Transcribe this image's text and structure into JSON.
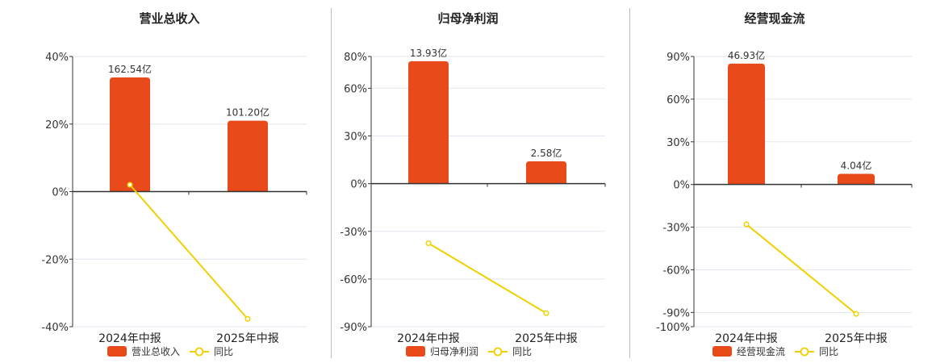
{
  "colors": {
    "bar": "#E84A1A",
    "line": "#F2D000",
    "grid": "#e3e6f0",
    "axis": "#333333",
    "text": "#333333"
  },
  "chart_data": [
    {
      "type": "bar",
      "title": "营业总收入",
      "categories": [
        "2024年中报",
        "2025年中报"
      ],
      "bar_labels": [
        "162.54亿",
        "101.20亿"
      ],
      "series": [
        {
          "name": "营业总收入",
          "type": "bar",
          "values": [
            33.8,
            21.0
          ]
        },
        {
          "name": "同比",
          "type": "line",
          "values": [
            2.0,
            -37.7
          ]
        }
      ],
      "ylim": [
        -40,
        40
      ],
      "yticks": [
        40,
        20,
        0,
        -20,
        -40
      ],
      "ytick_labels": [
        "40%",
        "20%",
        "0%",
        "-20%",
        "-40%"
      ],
      "grid": true,
      "legend_position": "bottom"
    },
    {
      "type": "bar",
      "title": "归母净利润",
      "categories": [
        "2024年中报",
        "2025年中报"
      ],
      "bar_labels": [
        "13.93亿",
        "2.58亿"
      ],
      "series": [
        {
          "name": "归母净利润",
          "type": "bar",
          "values": [
            77,
            14
          ]
        },
        {
          "name": "同比",
          "type": "line",
          "values": [
            -37.5,
            -81.5
          ]
        }
      ],
      "ylim": [
        -90,
        80
      ],
      "yticks": [
        80,
        60,
        30,
        0,
        -30,
        -60,
        -90
      ],
      "ytick_labels": [
        "80%",
        "60%",
        "30%",
        "0%",
        "-30%",
        "-60%",
        "-90%"
      ],
      "grid": true,
      "legend_position": "bottom"
    },
    {
      "type": "bar",
      "title": "经营现金流",
      "categories": [
        "2024年中报",
        "2025年中报"
      ],
      "bar_labels": [
        "46.93亿",
        "4.04亿"
      ],
      "series": [
        {
          "name": "经营现金流",
          "type": "bar",
          "values": [
            85,
            7.5
          ]
        },
        {
          "name": "同比",
          "type": "line",
          "values": [
            -28,
            -91
          ]
        }
      ],
      "ylim": [
        -100,
        90
      ],
      "yticks": [
        90,
        60,
        30,
        0,
        -30,
        -60,
        -90,
        -100
      ],
      "ytick_labels": [
        "90%",
        "60%",
        "30%",
        "0%",
        "-30%",
        "-60%",
        "-90%",
        "-100%"
      ],
      "grid": true,
      "legend_position": "bottom"
    }
  ]
}
